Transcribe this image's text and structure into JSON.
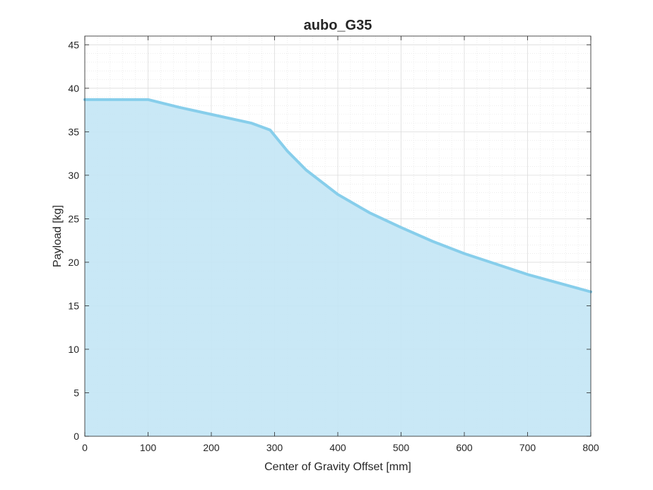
{
  "chart_data": {
    "type": "area",
    "title": "aubo_G35",
    "xlabel": "Center of Gravity Offset [mm]",
    "ylabel": "Payload [kg]",
    "xlim": [
      0,
      800
    ],
    "ylim": [
      0,
      46
    ],
    "xticks": [
      0,
      100,
      200,
      300,
      400,
      500,
      600,
      700,
      800
    ],
    "yticks": [
      0,
      5,
      10,
      15,
      20,
      25,
      30,
      35,
      40,
      45
    ],
    "grid": true,
    "minor_grid": true,
    "series": [
      {
        "color": "#87ceeb",
        "fill_color": "#c3e6f5",
        "x": [
          0,
          100,
          150,
          200,
          263,
          293,
          320,
          350,
          400,
          450,
          500,
          550,
          600,
          650,
          700,
          750,
          800
        ],
        "y": [
          38.7,
          38.7,
          37.8,
          37.0,
          36.0,
          35.2,
          32.8,
          30.6,
          27.8,
          25.7,
          24.0,
          22.4,
          21.0,
          19.8,
          18.6,
          17.6,
          16.6
        ]
      }
    ]
  }
}
